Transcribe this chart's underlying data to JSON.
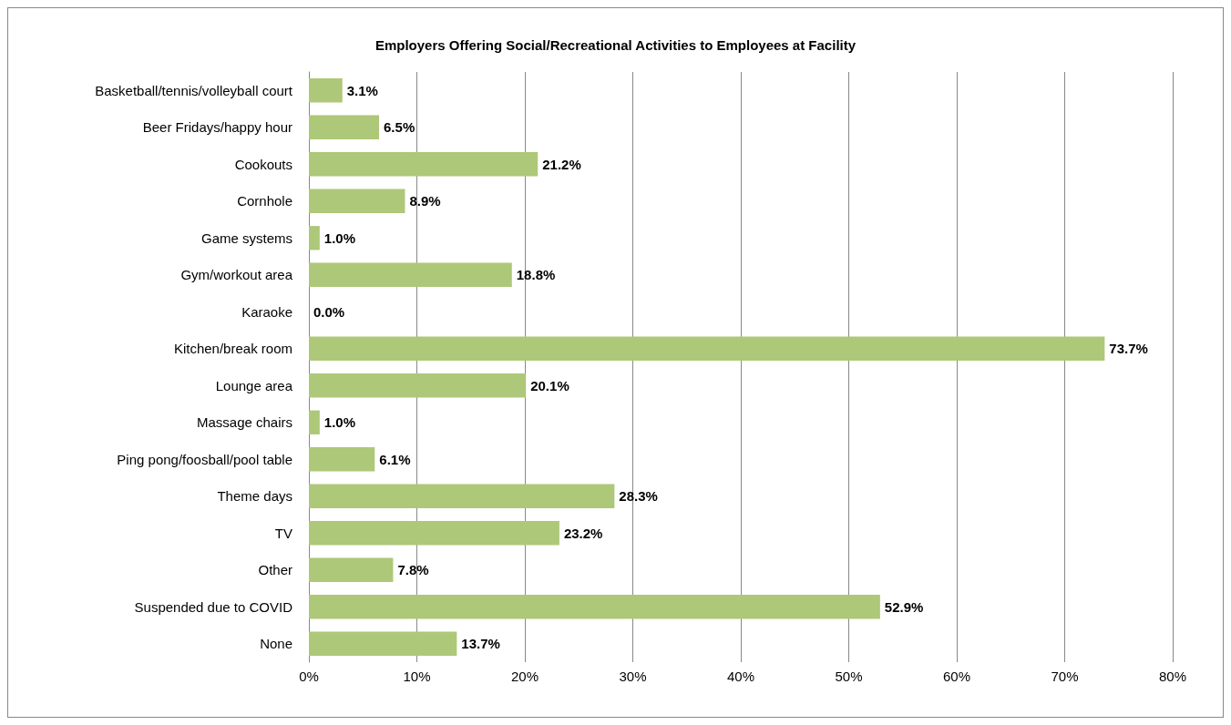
{
  "chart_data": {
    "type": "bar",
    "orientation": "horizontal",
    "title": "Employers Offering Social/Recreational Activities to Employees at Facility",
    "categories": [
      "Basketball/tennis/volleyball court",
      "Beer Fridays/happy hour",
      "Cookouts",
      "Cornhole",
      "Game systems",
      "Gym/workout area",
      "Karaoke",
      "Kitchen/break room",
      "Lounge area",
      "Massage chairs",
      "Ping pong/foosball/pool table",
      "Theme days",
      "TV",
      "Other",
      "Suspended due to COVID",
      "None"
    ],
    "values": [
      3.1,
      6.5,
      21.2,
      8.9,
      1.0,
      18.8,
      0.0,
      73.7,
      20.1,
      1.0,
      6.1,
      28.3,
      23.2,
      7.8,
      52.9,
      13.7
    ],
    "value_labels": [
      "3.1%",
      "6.5%",
      "21.2%",
      "8.9%",
      "1.0%",
      "18.8%",
      "0.0%",
      "73.7%",
      "20.1%",
      "1.0%",
      "6.1%",
      "28.3%",
      "23.2%",
      "7.8%",
      "52.9%",
      "13.7%"
    ],
    "color": "#adc878",
    "xlim": [
      0,
      80
    ],
    "xticks": [
      {
        "value": 0,
        "label": "0%"
      },
      {
        "value": 10,
        "label": "10%"
      },
      {
        "value": 20,
        "label": "20%"
      },
      {
        "value": 30,
        "label": "30%"
      },
      {
        "value": 40,
        "label": "40%"
      },
      {
        "value": 50,
        "label": "50%"
      },
      {
        "value": 60,
        "label": "60%"
      },
      {
        "value": 70,
        "label": "70%"
      },
      {
        "value": 80,
        "label": "80%"
      }
    ],
    "grid": "x"
  }
}
